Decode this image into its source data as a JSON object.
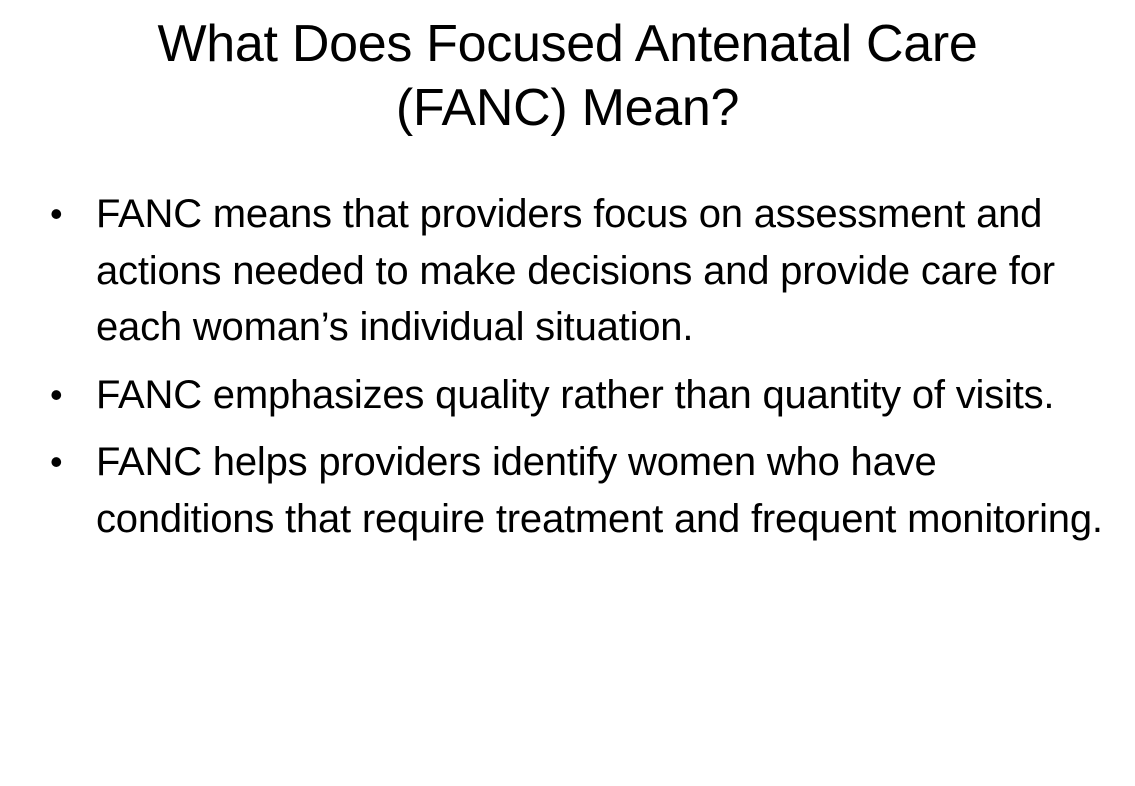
{
  "slide": {
    "title_lines": [
      "What Does Focused Antenatal Care",
      "(FANC) Mean?"
    ],
    "bullet_glyph": "•",
    "bullets": [
      "FANC means that providers focus on assessment and actions needed to make decisions and provide care for each woman’s individual situation.",
      "FANC emphasizes quality rather than quantity of visits.",
      "FANC helps providers identify women who have conditions that require treatment and frequent monitoring."
    ]
  }
}
